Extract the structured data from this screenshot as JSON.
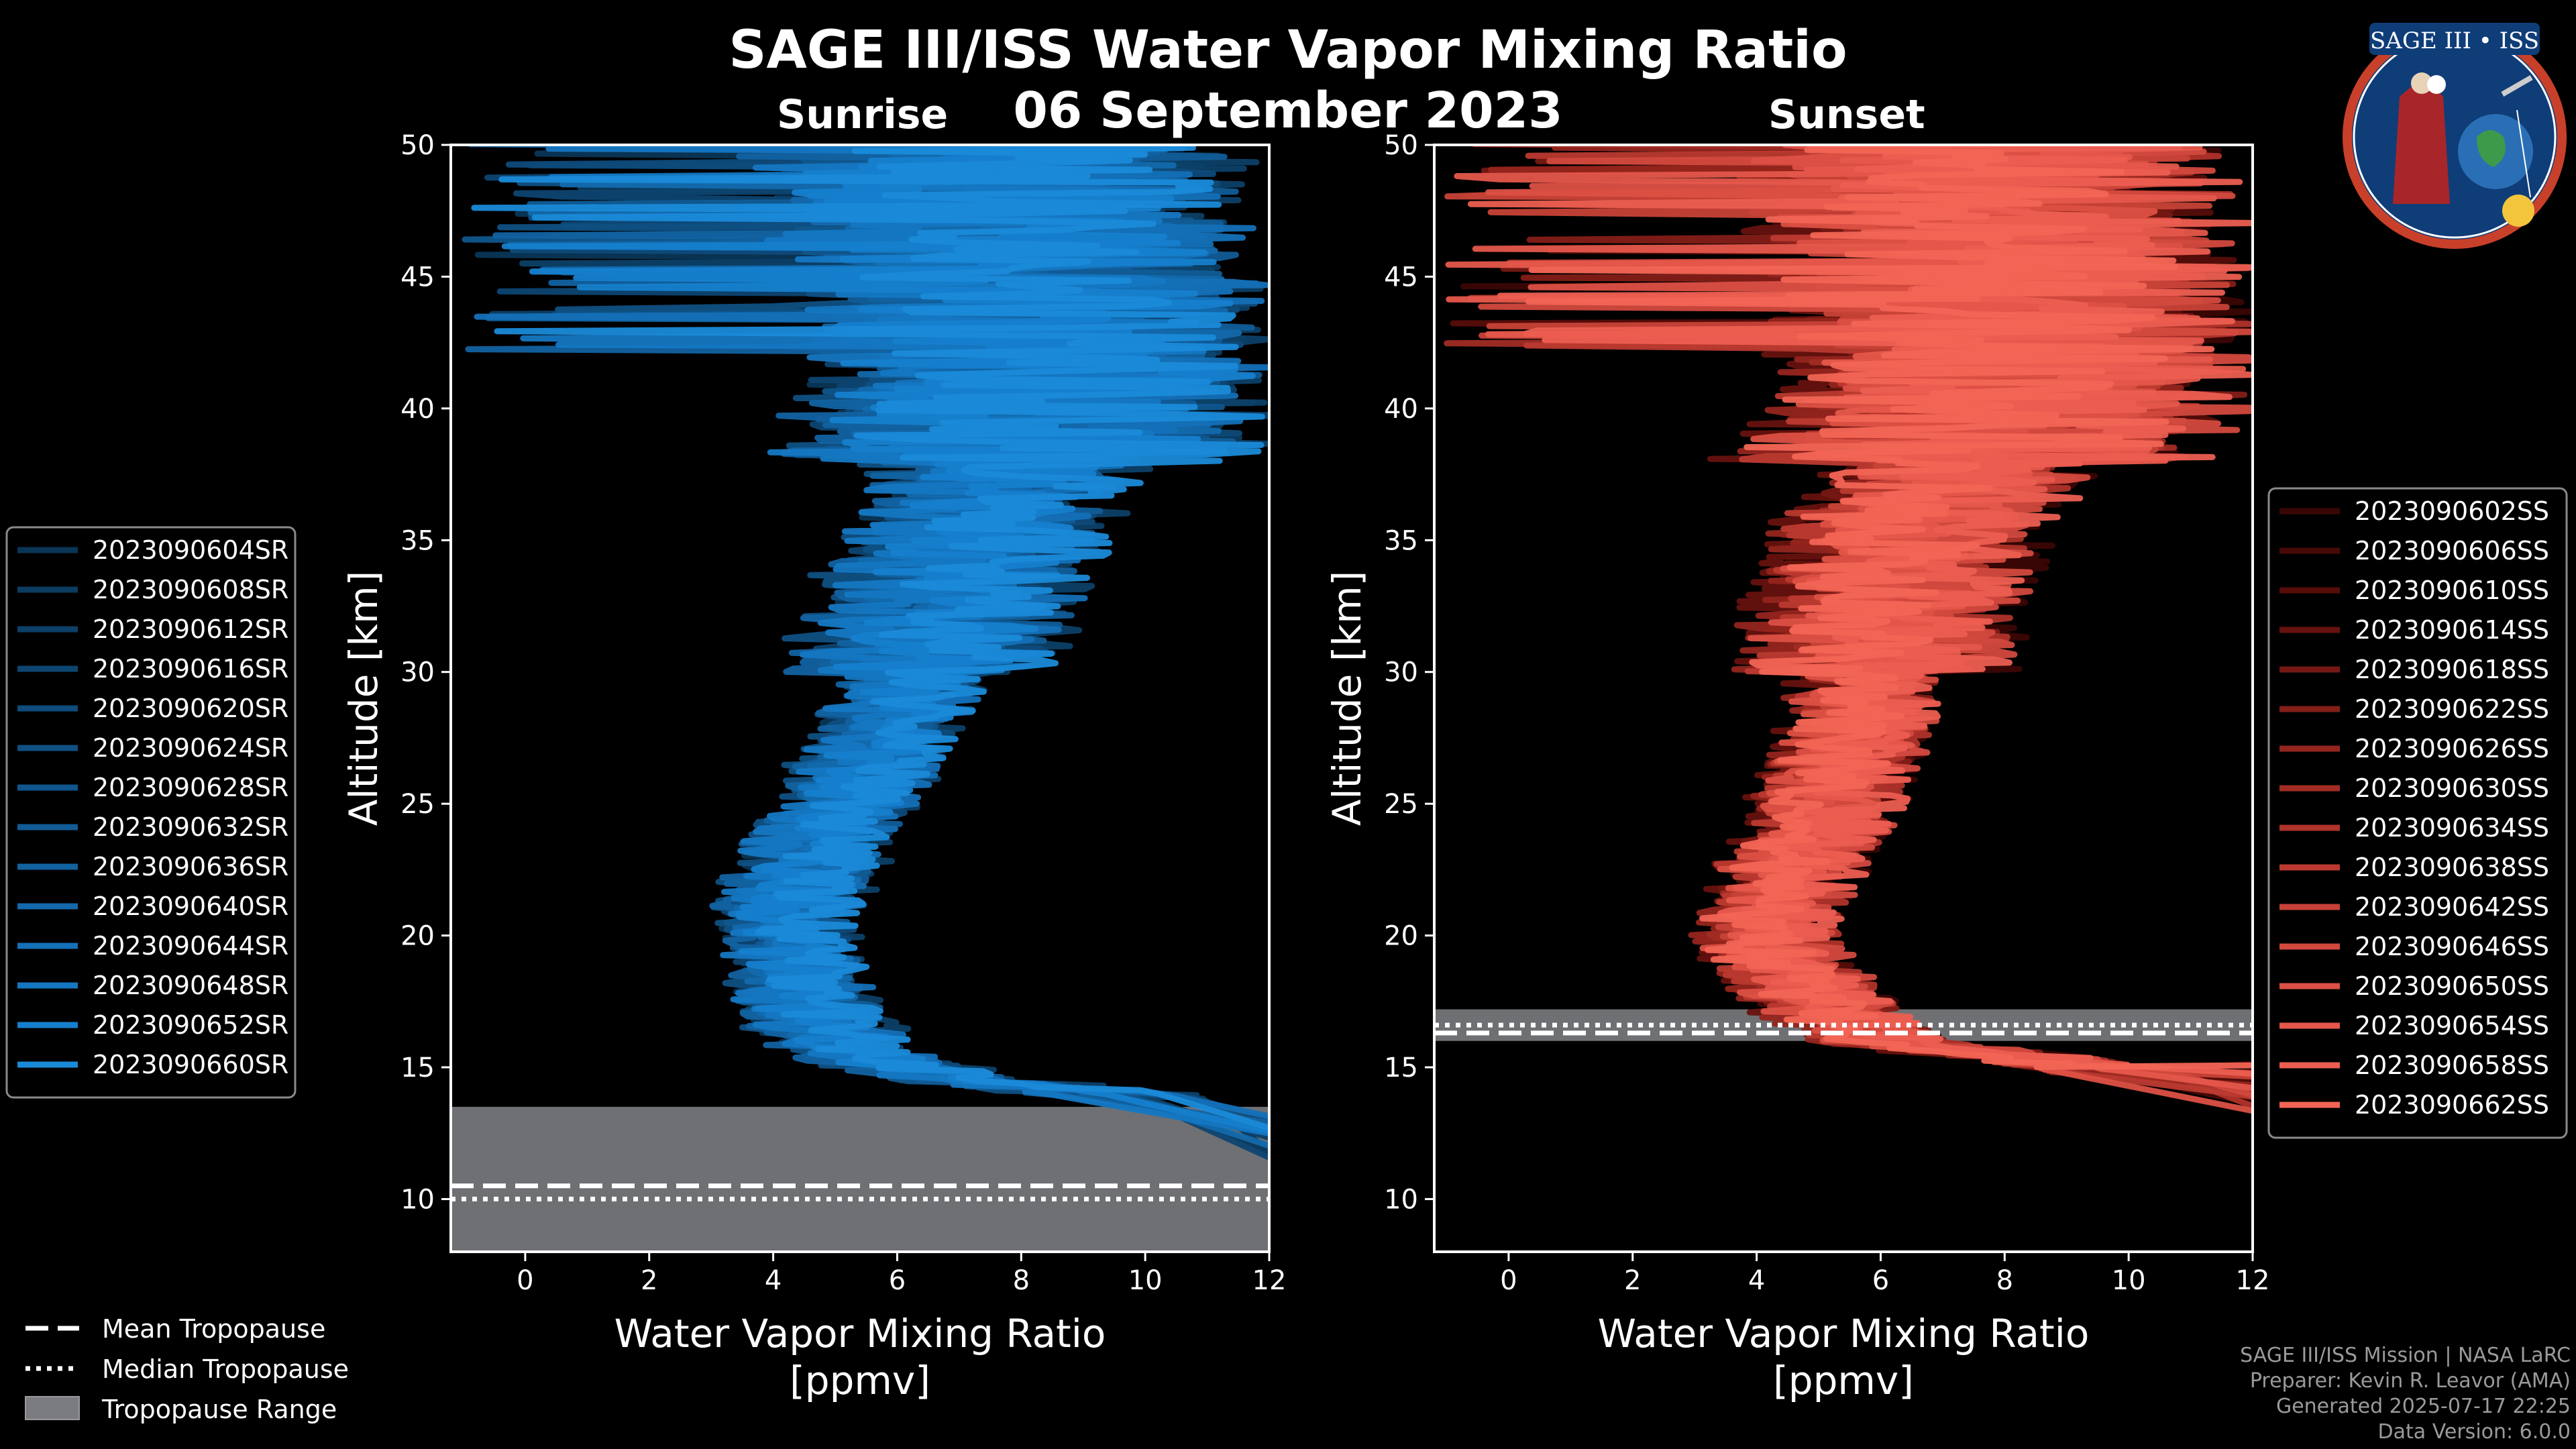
{
  "title": "SAGE III/ISS Water Vapor Mixing Ratio",
  "date": "06 September 2023",
  "logo": {
    "text": "SAGE III • ISS",
    "alt": "SAGE III ISS mission patch"
  },
  "credits": [
    "SAGE III/ISS Mission | NASA LaRC",
    "Preparer: Kevin R. Leavor (AMA)",
    "Generated 2025-07-17 22:25",
    "Data Version: 6.0.0"
  ],
  "bottom_legend": {
    "mean": "Mean Tropopause",
    "median": "Median Tropopause",
    "range": "Tropopause Range"
  },
  "chart_data": [
    {
      "id": "sunrise",
      "type": "line",
      "title": "Sunrise",
      "xlabel": "Water Vapor Mixing Ratio\n[ppmv]",
      "ylabel": "Altitude [km]",
      "xlim": [
        -1.2,
        12
      ],
      "ylim": [
        8,
        50
      ],
      "xticks": [
        0,
        2,
        4,
        6,
        8,
        10,
        12
      ],
      "yticks": [
        10,
        15,
        20,
        25,
        30,
        35,
        40,
        45,
        50
      ],
      "tropopause": {
        "mean": 10.5,
        "median": 10.0,
        "range": [
          8.0,
          13.5
        ]
      },
      "profile": [
        [
          13.5,
          12.0
        ],
        [
          14.5,
          7.0
        ],
        [
          15.5,
          5.2
        ],
        [
          16.5,
          4.8
        ],
        [
          17.5,
          4.5
        ],
        [
          18.5,
          4.4
        ],
        [
          19.5,
          4.3
        ],
        [
          20.5,
          4.2
        ],
        [
          21.5,
          4.3
        ],
        [
          22.5,
          4.5
        ],
        [
          23.5,
          4.7
        ],
        [
          24.5,
          5.0
        ],
        [
          25.5,
          5.3
        ],
        [
          26.5,
          5.5
        ],
        [
          27.5,
          5.8
        ],
        [
          28.5,
          6.0
        ],
        [
          29.5,
          6.2
        ],
        [
          30.5,
          6.4
        ],
        [
          31.5,
          6.6
        ],
        [
          32.5,
          6.8
        ],
        [
          33.5,
          6.9
        ],
        [
          34.5,
          7.1
        ],
        [
          35.5,
          7.3
        ],
        [
          36.5,
          7.5
        ],
        [
          37.5,
          7.7
        ],
        [
          38.5,
          7.9
        ],
        [
          39.5,
          8.0
        ],
        [
          40.5,
          8.2
        ],
        [
          41.5,
          8.3
        ],
        [
          42.5,
          8.3
        ],
        [
          43.5,
          8.2
        ],
        [
          44.5,
          8.0
        ],
        [
          45.5,
          7.9
        ],
        [
          46.5,
          7.8
        ],
        [
          47.5,
          7.7
        ],
        [
          48.5,
          7.6
        ],
        [
          49.5,
          7.5
        ]
      ],
      "series": [
        {
          "name": "2023090604SR",
          "color": "#0a3656"
        },
        {
          "name": "2023090608SR",
          "color": "#0b3b5f"
        },
        {
          "name": "2023090612SR",
          "color": "#0c4068"
        },
        {
          "name": "2023090616SR",
          "color": "#0d4571"
        },
        {
          "name": "2023090620SR",
          "color": "#0e4a7a"
        },
        {
          "name": "2023090624SR",
          "color": "#0f5083"
        },
        {
          "name": "2023090628SR",
          "color": "#10568d"
        },
        {
          "name": "2023090632SR",
          "color": "#115c97"
        },
        {
          "name": "2023090636SR",
          "color": "#1262a1"
        },
        {
          "name": "2023090640SR",
          "color": "#1369ac"
        },
        {
          "name": "2023090644SR",
          "color": "#1470b7"
        },
        {
          "name": "2023090648SR",
          "color": "#1577c2"
        },
        {
          "name": "2023090652SR",
          "color": "#167fcd"
        },
        {
          "name": "2023090660SR",
          "color": "#1a8ad8"
        }
      ]
    },
    {
      "id": "sunset",
      "type": "line",
      "title": "Sunset",
      "xlabel": "Water Vapor Mixing Ratio\n[ppmv]",
      "ylabel": "Altitude [km]",
      "xlim": [
        -1.2,
        12
      ],
      "ylim": [
        8,
        50
      ],
      "xticks": [
        0,
        2,
        4,
        6,
        8,
        10,
        12
      ],
      "yticks": [
        10,
        15,
        20,
        25,
        30,
        35,
        40,
        45,
        50
      ],
      "tropopause": {
        "mean": 16.3,
        "median": 16.6,
        "range": [
          16.0,
          17.2
        ]
      },
      "profile": [
        [
          14.0,
          12.0
        ],
        [
          15.0,
          9.5
        ],
        [
          16.0,
          6.0
        ],
        [
          17.0,
          5.2
        ],
        [
          18.0,
          4.8
        ],
        [
          19.0,
          4.4
        ],
        [
          20.0,
          4.1
        ],
        [
          21.0,
          4.2
        ],
        [
          22.0,
          4.4
        ],
        [
          23.0,
          4.6
        ],
        [
          24.0,
          4.9
        ],
        [
          25.0,
          5.1
        ],
        [
          26.0,
          5.3
        ],
        [
          27.0,
          5.5
        ],
        [
          28.0,
          5.6
        ],
        [
          29.0,
          5.7
        ],
        [
          30.0,
          5.8
        ],
        [
          31.0,
          5.9
        ],
        [
          32.0,
          6.0
        ],
        [
          33.0,
          6.1
        ],
        [
          34.0,
          6.2
        ],
        [
          35.0,
          6.4
        ],
        [
          36.0,
          6.6
        ],
        [
          37.0,
          6.9
        ],
        [
          38.0,
          7.3
        ],
        [
          39.0,
          7.7
        ],
        [
          40.0,
          8.0
        ],
        [
          41.0,
          8.2
        ],
        [
          42.0,
          8.3
        ],
        [
          43.0,
          8.3
        ],
        [
          44.0,
          8.2
        ],
        [
          45.0,
          8.1
        ],
        [
          46.0,
          8.0
        ],
        [
          47.0,
          7.9
        ],
        [
          48.0,
          7.8
        ],
        [
          49.0,
          7.7
        ],
        [
          49.8,
          7.6
        ]
      ],
      "series": [
        {
          "name": "2023090602SS",
          "color": "#3a0605"
        },
        {
          "name": "2023090606SS",
          "color": "#470907"
        },
        {
          "name": "2023090610SS",
          "color": "#560d0a"
        },
        {
          "name": "2023090614SS",
          "color": "#66120e"
        },
        {
          "name": "2023090618SS",
          "color": "#751813"
        },
        {
          "name": "2023090622SS",
          "color": "#841e18"
        },
        {
          "name": "2023090626SS",
          "color": "#93251e"
        },
        {
          "name": "2023090630SS",
          "color": "#a12c24"
        },
        {
          "name": "2023090634SS",
          "color": "#ae332a"
        },
        {
          "name": "2023090638SS",
          "color": "#bb3a30"
        },
        {
          "name": "2023090642SS",
          "color": "#c74237"
        },
        {
          "name": "2023090646SS",
          "color": "#d2493e"
        },
        {
          "name": "2023090650SS",
          "color": "#dc5045"
        },
        {
          "name": "2023090654SS",
          "color": "#e5574b"
        },
        {
          "name": "2023090658SS",
          "color": "#ec5e51"
        },
        {
          "name": "2023090662SS",
          "color": "#f26555"
        }
      ]
    }
  ]
}
